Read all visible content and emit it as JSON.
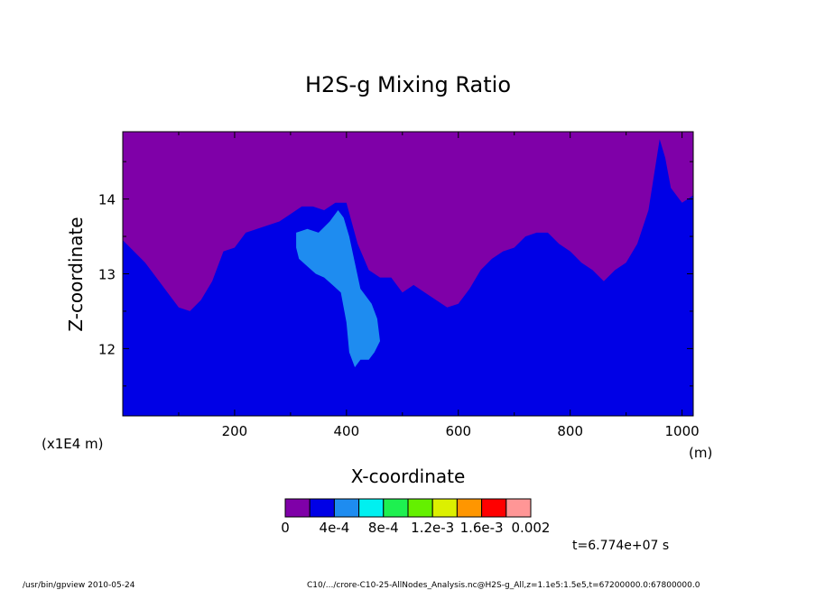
{
  "chart_data": {
    "type": "heatmap",
    "title": "H2S-g Mixing Ratio",
    "xlabel": "X-coordinate",
    "ylabel": "Z-coordinate",
    "x_unit": "(m)",
    "y_unit": "(x1E4 m)",
    "xlim": [
      0,
      1020
    ],
    "ylim": [
      11.1,
      14.9
    ],
    "x_ticks": [
      "200",
      "400",
      "600",
      "800",
      "1000"
    ],
    "x_tick_values": [
      200,
      400,
      600,
      800,
      1000
    ],
    "y_ticks": [
      "12",
      "13",
      "14"
    ],
    "y_tick_values": [
      12,
      13,
      14
    ],
    "colorbar": {
      "colors": [
        "#7f00a8",
        "#0000e6",
        "#1e8cf0",
        "#00f0f0",
        "#1ef050",
        "#64f000",
        "#dcf000",
        "#ff9600",
        "#ff0000",
        "#ff9696"
      ],
      "labels": [
        "0",
        "4e-4",
        "8e-4",
        "1.2e-3",
        "1.6e-3",
        "0.002"
      ]
    },
    "regions": {
      "upper_boundary": [
        [
          0,
          13.45
        ],
        [
          20,
          13.3
        ],
        [
          40,
          13.15
        ],
        [
          60,
          12.95
        ],
        [
          80,
          12.75
        ],
        [
          100,
          12.55
        ],
        [
          120,
          12.5
        ],
        [
          140,
          12.65
        ],
        [
          160,
          12.9
        ],
        [
          180,
          13.3
        ],
        [
          200,
          13.35
        ],
        [
          220,
          13.55
        ],
        [
          240,
          13.6
        ],
        [
          260,
          13.65
        ],
        [
          280,
          13.7
        ],
        [
          300,
          13.8
        ],
        [
          320,
          13.9
        ],
        [
          340,
          13.9
        ],
        [
          360,
          13.85
        ],
        [
          380,
          13.95
        ],
        [
          400,
          13.95
        ],
        [
          420,
          13.4
        ],
        [
          440,
          13.05
        ],
        [
          460,
          12.95
        ],
        [
          480,
          12.95
        ],
        [
          500,
          12.75
        ],
        [
          520,
          12.85
        ],
        [
          540,
          12.75
        ],
        [
          560,
          12.65
        ],
        [
          580,
          12.55
        ],
        [
          600,
          12.6
        ],
        [
          620,
          12.8
        ],
        [
          640,
          13.05
        ],
        [
          660,
          13.2
        ],
        [
          680,
          13.3
        ],
        [
          700,
          13.35
        ],
        [
          720,
          13.5
        ],
        [
          740,
          13.55
        ],
        [
          760,
          13.55
        ],
        [
          780,
          13.4
        ],
        [
          800,
          13.3
        ],
        [
          820,
          13.15
        ],
        [
          840,
          13.05
        ],
        [
          860,
          12.9
        ],
        [
          880,
          13.05
        ],
        [
          900,
          13.15
        ],
        [
          920,
          13.4
        ],
        [
          940,
          13.85
        ],
        [
          960,
          14.8
        ],
        [
          970,
          14.55
        ],
        [
          980,
          14.15
        ],
        [
          1000,
          13.95
        ],
        [
          1020,
          14.05
        ]
      ],
      "light_blue_patch": [
        [
          310,
          13.55
        ],
        [
          330,
          13.6
        ],
        [
          350,
          13.55
        ],
        [
          370,
          13.7
        ],
        [
          385,
          13.85
        ],
        [
          395,
          13.75
        ],
        [
          405,
          13.5
        ],
        [
          415,
          13.15
        ],
        [
          425,
          12.8
        ],
        [
          435,
          12.7
        ],
        [
          445,
          12.6
        ],
        [
          455,
          12.4
        ],
        [
          460,
          12.1
        ],
        [
          450,
          11.95
        ],
        [
          440,
          11.85
        ],
        [
          425,
          11.85
        ],
        [
          415,
          11.75
        ],
        [
          405,
          11.95
        ],
        [
          400,
          12.35
        ],
        [
          390,
          12.75
        ],
        [
          375,
          12.85
        ],
        [
          360,
          12.95
        ],
        [
          345,
          13.0
        ],
        [
          330,
          13.1
        ],
        [
          315,
          13.2
        ],
        [
          310,
          13.35
        ]
      ]
    }
  },
  "annotations": {
    "time": "t=6.774e+07 s",
    "footer_left": "/usr/bin/gpview  2010-05-24",
    "footer_right": "C10/.../crore-C10-25-AllNodes_Analysis.nc@H2S-g_All,z=1.1e5:1.5e5,t=67200000.0:67800000.0"
  }
}
